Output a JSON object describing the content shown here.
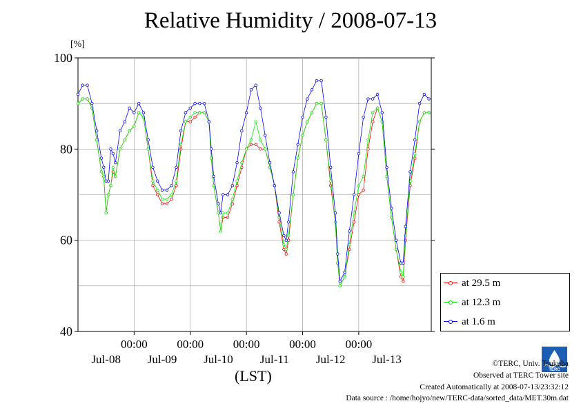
{
  "title": "Relative Humidity / 2008-07-13",
  "y_unit_label": "[%]",
  "x_unit_label": "(LST)",
  "credits": {
    "copyright": "©TERC, Univ. Tsukuba",
    "observed": "Observed at TERC Tower site",
    "created": "Created Automatically at 2008-07-13/23:32:12",
    "source": "Data source : /home/hojyo/new/TERC-data/sorted_data/MET.30m.dat"
  },
  "logo_text": "TERC",
  "chart_data": {
    "type": "line",
    "title": "Relative Humidity / 2008-07-13",
    "ylabel": "[%]",
    "xlabel": "(LST)",
    "ylim": [
      40,
      100
    ],
    "xlim": [
      0,
      144
    ],
    "yticks": [
      40,
      60,
      80,
      100
    ],
    "xticks": [
      {
        "x": 24,
        "time": "00:00",
        "date": "Jul-08"
      },
      {
        "x": 48,
        "time": "00:00",
        "date": "Jul-09"
      },
      {
        "x": 72,
        "time": "00:00",
        "date": "Jul-10"
      },
      {
        "x": 96,
        "time": "00:00",
        "date": "Jul-11"
      },
      {
        "x": 120,
        "time": "00:00",
        "date": "Jul-12"
      }
    ],
    "bottom_date_labels": [
      {
        "x": 12,
        "label": "Jul-08"
      },
      {
        "x": 36,
        "label": "Jul-09"
      },
      {
        "x": 60,
        "label": "Jul-10"
      },
      {
        "x": 84,
        "label": "Jul-11"
      },
      {
        "x": 108,
        "label": "Jul-12"
      },
      {
        "x": 132,
        "label": "Jul-13"
      }
    ],
    "x_unit": "hours",
    "grid": true,
    "legend_position": "right",
    "series": [
      {
        "name": "at 29.5 m",
        "color": "#ff0000",
        "points": [
          [
            0,
            90
          ],
          [
            2,
            91
          ],
          [
            4,
            91
          ],
          [
            6,
            89
          ],
          [
            8,
            82
          ],
          [
            10,
            75
          ],
          [
            11,
            74
          ],
          [
            12,
            66
          ],
          [
            13,
            70
          ],
          [
            14,
            72
          ],
          [
            15,
            75
          ],
          [
            16,
            74
          ],
          [
            18,
            80
          ],
          [
            20,
            82
          ],
          [
            22,
            84
          ],
          [
            24,
            85
          ],
          [
            26,
            88
          ],
          [
            28,
            87
          ],
          [
            30,
            80
          ],
          [
            32,
            72
          ],
          [
            34,
            70
          ],
          [
            36,
            68
          ],
          [
            38,
            68
          ],
          [
            40,
            69
          ],
          [
            42,
            72
          ],
          [
            44,
            80
          ],
          [
            46,
            86
          ],
          [
            48,
            86
          ],
          [
            50,
            87
          ],
          [
            52,
            88
          ],
          [
            54,
            88
          ],
          [
            56,
            86
          ],
          [
            57,
            78
          ],
          [
            58,
            72
          ],
          [
            60,
            66
          ],
          [
            61,
            62
          ],
          [
            62,
            65
          ],
          [
            64,
            65
          ],
          [
            66,
            68
          ],
          [
            68,
            72
          ],
          [
            70,
            76
          ],
          [
            72,
            80
          ],
          [
            74,
            81
          ],
          [
            76,
            81
          ],
          [
            78,
            80
          ],
          [
            80,
            80
          ],
          [
            82,
            76
          ],
          [
            84,
            72
          ],
          [
            86,
            64
          ],
          [
            88,
            58
          ],
          [
            89,
            57
          ],
          [
            90,
            60
          ],
          [
            92,
            70
          ],
          [
            94,
            78
          ],
          [
            96,
            83
          ],
          [
            98,
            86
          ],
          [
            100,
            88
          ],
          [
            102,
            90
          ],
          [
            104,
            90
          ],
          [
            106,
            82
          ],
          [
            108,
            72
          ],
          [
            110,
            64
          ],
          [
            111,
            55
          ],
          [
            112,
            50
          ],
          [
            114,
            52
          ],
          [
            116,
            58
          ],
          [
            118,
            64
          ],
          [
            120,
            70
          ],
          [
            122,
            71
          ],
          [
            124,
            80
          ],
          [
            126,
            86
          ],
          [
            128,
            89
          ],
          [
            130,
            86
          ],
          [
            132,
            74
          ],
          [
            134,
            65
          ],
          [
            136,
            58
          ],
          [
            138,
            52
          ],
          [
            139,
            51
          ],
          [
            140,
            60
          ],
          [
            142,
            72
          ],
          [
            144,
            78
          ],
          [
            146,
            86
          ],
          [
            148,
            88
          ],
          [
            150,
            88
          ]
        ]
      },
      {
        "name": "at 12.3 m",
        "color": "#00ee00",
        "points": [
          [
            0,
            90
          ],
          [
            2,
            91
          ],
          [
            4,
            91
          ],
          [
            6,
            89
          ],
          [
            8,
            82
          ],
          [
            10,
            75
          ],
          [
            11,
            74
          ],
          [
            12,
            66
          ],
          [
            13,
            70
          ],
          [
            14,
            72
          ],
          [
            15,
            76
          ],
          [
            16,
            74
          ],
          [
            18,
            80
          ],
          [
            20,
            82
          ],
          [
            22,
            84
          ],
          [
            24,
            85
          ],
          [
            26,
            88
          ],
          [
            28,
            87
          ],
          [
            30,
            80
          ],
          [
            32,
            73
          ],
          [
            34,
            71
          ],
          [
            36,
            69
          ],
          [
            38,
            69
          ],
          [
            40,
            70
          ],
          [
            42,
            73
          ],
          [
            44,
            81
          ],
          [
            46,
            86
          ],
          [
            48,
            87
          ],
          [
            50,
            88
          ],
          [
            52,
            88
          ],
          [
            54,
            88
          ],
          [
            56,
            86
          ],
          [
            57,
            78
          ],
          [
            58,
            72
          ],
          [
            60,
            66
          ],
          [
            61,
            62
          ],
          [
            62,
            66
          ],
          [
            64,
            66
          ],
          [
            66,
            69
          ],
          [
            68,
            73
          ],
          [
            70,
            77
          ],
          [
            72,
            80
          ],
          [
            74,
            82
          ],
          [
            76,
            86
          ],
          [
            78,
            82
          ],
          [
            80,
            80
          ],
          [
            82,
            76
          ],
          [
            84,
            72
          ],
          [
            86,
            65
          ],
          [
            88,
            59
          ],
          [
            89,
            58
          ],
          [
            90,
            61
          ],
          [
            92,
            70
          ],
          [
            94,
            78
          ],
          [
            96,
            83
          ],
          [
            98,
            86
          ],
          [
            100,
            88
          ],
          [
            102,
            90
          ],
          [
            104,
            90
          ],
          [
            106,
            82
          ],
          [
            108,
            73
          ],
          [
            110,
            64
          ],
          [
            111,
            55
          ],
          [
            112,
            50
          ],
          [
            114,
            52
          ],
          [
            116,
            59
          ],
          [
            118,
            66
          ],
          [
            120,
            72
          ],
          [
            122,
            74
          ],
          [
            124,
            82
          ],
          [
            126,
            88
          ],
          [
            128,
            89
          ],
          [
            130,
            86
          ],
          [
            132,
            74
          ],
          [
            134,
            65
          ],
          [
            136,
            58
          ],
          [
            138,
            53
          ],
          [
            139,
            52
          ],
          [
            140,
            61
          ],
          [
            142,
            73
          ],
          [
            144,
            79
          ],
          [
            146,
            86
          ],
          [
            148,
            88
          ],
          [
            150,
            88
          ]
        ]
      },
      {
        "name": "at 1.6 m",
        "color": "#0000ff",
        "points": [
          [
            0,
            92
          ],
          [
            2,
            94
          ],
          [
            4,
            94
          ],
          [
            6,
            90
          ],
          [
            8,
            84
          ],
          [
            10,
            78
          ],
          [
            11,
            76
          ],
          [
            12,
            73
          ],
          [
            13,
            73
          ],
          [
            14,
            80
          ],
          [
            15,
            79
          ],
          [
            16,
            77
          ],
          [
            18,
            84
          ],
          [
            20,
            86
          ],
          [
            22,
            89
          ],
          [
            24,
            88
          ],
          [
            26,
            90
          ],
          [
            28,
            88
          ],
          [
            30,
            82
          ],
          [
            32,
            76
          ],
          [
            34,
            73
          ],
          [
            36,
            71
          ],
          [
            38,
            71
          ],
          [
            40,
            72
          ],
          [
            42,
            76
          ],
          [
            44,
            84
          ],
          [
            46,
            88
          ],
          [
            48,
            89
          ],
          [
            50,
            90
          ],
          [
            52,
            90
          ],
          [
            54,
            90
          ],
          [
            56,
            86
          ],
          [
            57,
            80
          ],
          [
            58,
            74
          ],
          [
            60,
            68
          ],
          [
            61,
            66
          ],
          [
            62,
            70
          ],
          [
            64,
            70
          ],
          [
            66,
            72
          ],
          [
            68,
            77
          ],
          [
            70,
            84
          ],
          [
            72,
            88
          ],
          [
            74,
            93
          ],
          [
            76,
            94
          ],
          [
            78,
            89
          ],
          [
            80,
            83
          ],
          [
            82,
            77
          ],
          [
            84,
            72
          ],
          [
            86,
            66
          ],
          [
            88,
            61
          ],
          [
            89,
            60
          ],
          [
            90,
            64
          ],
          [
            92,
            75
          ],
          [
            94,
            81
          ],
          [
            96,
            87
          ],
          [
            98,
            91
          ],
          [
            100,
            93
          ],
          [
            102,
            95
          ],
          [
            104,
            95
          ],
          [
            106,
            87
          ],
          [
            108,
            76
          ],
          [
            110,
            66
          ],
          [
            111,
            57
          ],
          [
            112,
            51
          ],
          [
            114,
            53
          ],
          [
            116,
            62
          ],
          [
            118,
            70
          ],
          [
            120,
            79
          ],
          [
            122,
            87
          ],
          [
            124,
            91
          ],
          [
            126,
            91
          ],
          [
            128,
            92
          ],
          [
            130,
            88
          ],
          [
            132,
            76
          ],
          [
            134,
            67
          ],
          [
            136,
            60
          ],
          [
            138,
            55
          ],
          [
            139,
            55
          ],
          [
            140,
            63
          ],
          [
            142,
            75
          ],
          [
            144,
            82
          ],
          [
            146,
            90
          ],
          [
            148,
            92
          ],
          [
            150,
            91
          ]
        ]
      }
    ]
  }
}
